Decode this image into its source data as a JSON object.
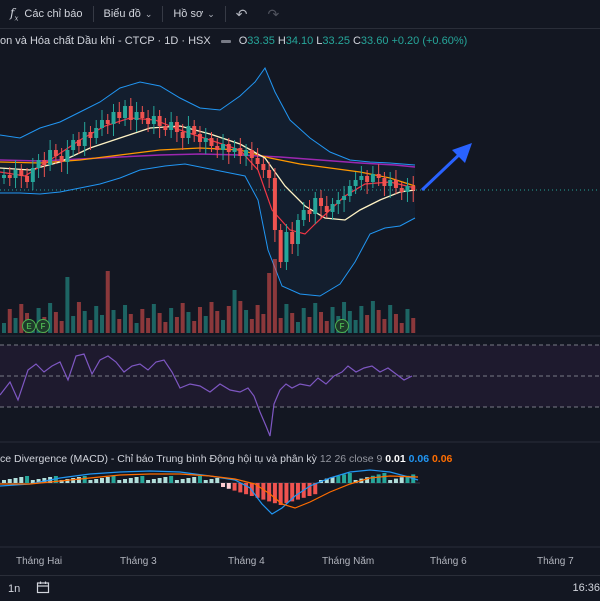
{
  "toolbar": {
    "indicators_label": "Các chỉ báo",
    "chart_type_label": "Biểu đồ",
    "profile_label": "Hồ sơ"
  },
  "legend": {
    "symbol": "on và Hóa chất Dầu khí - CTCP · 1D · HSX",
    "o_label": "O",
    "o_value": "33.35",
    "h_label": "H",
    "h_value": "34.10",
    "l_label": "L",
    "l_value": "33.25",
    "c_label": "C",
    "c_value": "33.60",
    "change": "+0.20 (+0.60%)"
  },
  "macd": {
    "title": "ce Divergence (MACD) - Chỉ báo Trung bình Động hội tụ và phân kỳ",
    "params": "12 26 close 9",
    "v1": "0.01",
    "v2": "0.06",
    "v3": "0.06"
  },
  "time_axis": [
    "Tháng Hai",
    "Tháng 3",
    "Tháng 4",
    "Tháng Năm",
    "Tháng 6",
    "Tháng 7"
  ],
  "markers": [
    "E",
    "F",
    "F"
  ],
  "bottom": {
    "interval": "1n"
  },
  "clock": "16:36",
  "colors": {
    "up": "#26a69a",
    "down": "#ef5350",
    "arrow": "#2962ff",
    "rsi": "#7e57c2"
  }
}
